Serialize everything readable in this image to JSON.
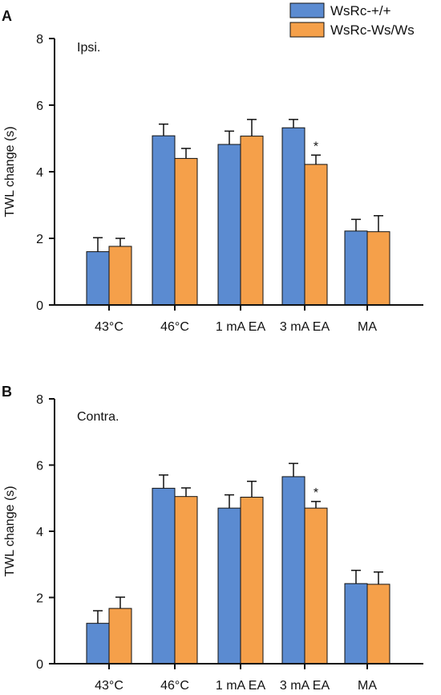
{
  "legend": {
    "entries": [
      {
        "label": "WsRc-+/+",
        "color": "#5b8bd1"
      },
      {
        "label": "WsRc-Ws/Ws",
        "color": "#f5a04a"
      }
    ]
  },
  "chart_data": [
    {
      "type": "bar",
      "panel_letter": "A",
      "annotation": "Ipsi.",
      "ylabel": "TWL change (s)",
      "ylim": [
        0,
        8
      ],
      "yticks": [
        0,
        2,
        4,
        6,
        8
      ],
      "categories": [
        "43°C",
        "46°C",
        "1 mA EA",
        "3 mA EA",
        "MA"
      ],
      "series": [
        {
          "name": "WsRc-+/+",
          "color": "#5b8bd1",
          "values": [
            1.6,
            5.08,
            4.82,
            5.32,
            2.22
          ],
          "errors": [
            0.42,
            0.35,
            0.4,
            0.25,
            0.35
          ]
        },
        {
          "name": "WsRc-Ws/Ws",
          "color": "#f5a04a",
          "values": [
            1.76,
            4.4,
            5.07,
            4.22,
            2.2
          ],
          "errors": [
            0.24,
            0.3,
            0.5,
            0.28,
            0.48
          ]
        }
      ],
      "significance": [
        {
          "category": "3 mA EA",
          "series": "WsRc-Ws/Ws",
          "mark": "*"
        }
      ]
    },
    {
      "type": "bar",
      "panel_letter": "B",
      "annotation": "Contra.",
      "ylabel": "TWL change (s)",
      "ylim": [
        0,
        8
      ],
      "yticks": [
        0,
        2,
        4,
        6,
        8
      ],
      "categories": [
        "43°C",
        "46°C",
        "1 mA EA",
        "3 mA EA",
        "MA"
      ],
      "series": [
        {
          "name": "WsRc-+/+",
          "color": "#5b8bd1",
          "values": [
            1.22,
            5.3,
            4.7,
            5.65,
            2.42
          ],
          "errors": [
            0.38,
            0.4,
            0.4,
            0.4,
            0.4
          ]
        },
        {
          "name": "WsRc-Ws/Ws",
          "color": "#f5a04a",
          "values": [
            1.67,
            5.05,
            5.03,
            4.7,
            2.4
          ],
          "errors": [
            0.34,
            0.26,
            0.48,
            0.2,
            0.37
          ]
        }
      ],
      "significance": [
        {
          "category": "3 mA EA",
          "series": "WsRc-Ws/Ws",
          "mark": "*"
        }
      ]
    }
  ]
}
